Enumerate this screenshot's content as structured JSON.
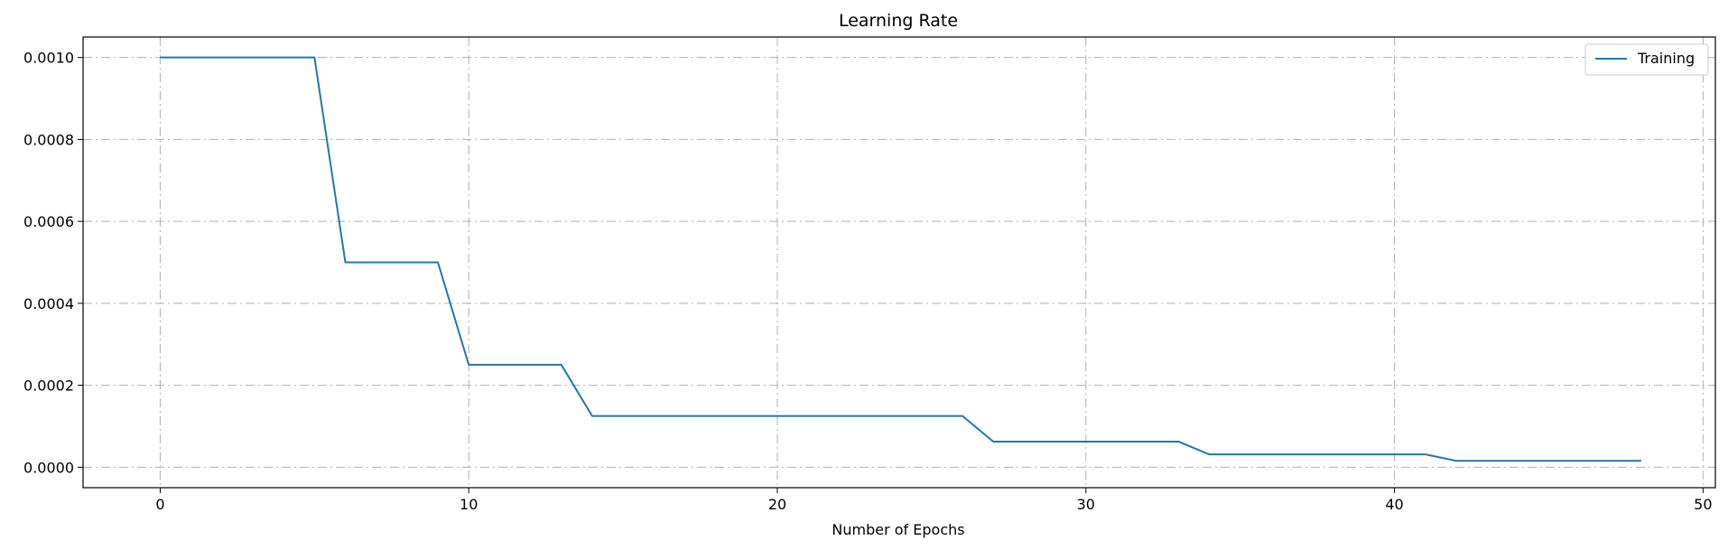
{
  "chart_data": {
    "type": "line",
    "title": "Learning Rate",
    "xlabel": "Number of Epochs",
    "ylabel": "",
    "xlim": [
      -2.5,
      50.4
    ],
    "ylim": [
      -5e-05,
      0.00105
    ],
    "xticks": [
      0,
      10,
      20,
      30,
      40,
      50
    ],
    "xtick_labels": [
      "0",
      "10",
      "20",
      "30",
      "40",
      "50"
    ],
    "yticks": [
      0,
      0.0002,
      0.0004,
      0.0006,
      0.0008,
      0.001
    ],
    "ytick_labels": [
      "0.0000",
      "0.0002",
      "0.0004",
      "0.0006",
      "0.0008",
      "0.0010"
    ],
    "grid": true,
    "grid_style": "dash-dot",
    "legend_position": "top-right",
    "series": [
      {
        "name": "Training",
        "color": "#1f77b4",
        "x": [
          0,
          1,
          2,
          3,
          4,
          5,
          6,
          7,
          8,
          9,
          10,
          11,
          12,
          13,
          14,
          15,
          16,
          17,
          18,
          19,
          20,
          21,
          22,
          23,
          24,
          25,
          26,
          27,
          28,
          29,
          30,
          31,
          32,
          33,
          34,
          35,
          36,
          37,
          38,
          39,
          40,
          41,
          42,
          43,
          44,
          45,
          46,
          47,
          48
        ],
        "y": [
          0.001,
          0.001,
          0.001,
          0.001,
          0.001,
          0.001,
          0.0005,
          0.0005,
          0.0005,
          0.0005,
          0.00025,
          0.00025,
          0.00025,
          0.00025,
          0.000125,
          0.000125,
          0.000125,
          0.000125,
          0.000125,
          0.000125,
          0.000125,
          0.000125,
          0.000125,
          0.000125,
          0.000125,
          0.000125,
          0.000125,
          6.25e-05,
          6.25e-05,
          6.25e-05,
          6.25e-05,
          6.25e-05,
          6.25e-05,
          6.25e-05,
          3.125e-05,
          3.125e-05,
          3.125e-05,
          3.125e-05,
          3.125e-05,
          3.125e-05,
          3.125e-05,
          3.125e-05,
          1.5625e-05,
          1.5625e-05,
          1.5625e-05,
          1.5625e-05,
          1.5625e-05,
          1.5625e-05,
          1.5625e-05
        ]
      }
    ]
  }
}
